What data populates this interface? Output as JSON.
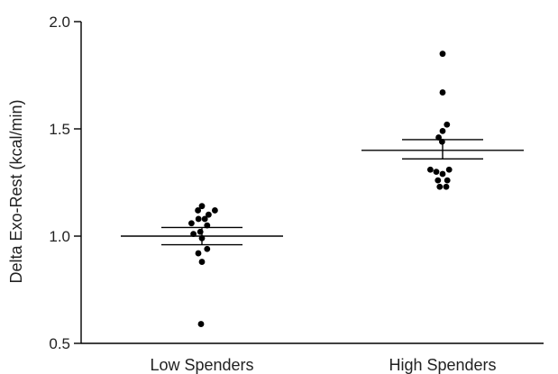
{
  "chart_data": {
    "type": "scatter",
    "title": "",
    "xlabel": "",
    "ylabel": "Delta Exo-Rest (kcal/min)",
    "ylim": [
      0.5,
      2.0
    ],
    "yticks": [
      "0.5",
      "1.0",
      "1.5",
      "2.0"
    ],
    "ytick_values": [
      0.5,
      1.0,
      1.5,
      2.0
    ],
    "grid": false,
    "legend": "none",
    "categories": [
      "Low Spenders",
      "High Spenders"
    ],
    "series": [
      {
        "category": "Low Spenders",
        "mean": 1.0,
        "sem_low": 0.96,
        "sem_high": 1.04,
        "points": [
          {
            "offset": 0.0,
            "y": 1.14
          },
          {
            "offset": -0.44,
            "y": 1.12
          },
          {
            "offset": 1.44,
            "y": 1.12
          },
          {
            "offset": 0.74,
            "y": 1.1
          },
          {
            "offset": -1.16,
            "y": 1.06
          },
          {
            "offset": 0.32,
            "y": 1.08
          },
          {
            "offset": -0.38,
            "y": 1.08
          },
          {
            "offset": 0.58,
            "y": 1.05
          },
          {
            "offset": -0.18,
            "y": 1.02
          },
          {
            "offset": -0.94,
            "y": 1.01
          },
          {
            "offset": 0.0,
            "y": 0.99
          },
          {
            "offset": 0.58,
            "y": 0.94
          },
          {
            "offset": -0.4,
            "y": 0.92
          },
          {
            "offset": 0.0,
            "y": 0.88
          },
          {
            "offset": -0.1,
            "y": 0.59
          }
        ]
      },
      {
        "category": "High Spenders",
        "mean": 1.4,
        "sem_low": 1.36,
        "sem_high": 1.45,
        "points": [
          {
            "offset": 0.0,
            "y": 1.85
          },
          {
            "offset": 0.0,
            "y": 1.67
          },
          {
            "offset": 0.48,
            "y": 1.52
          },
          {
            "offset": 0.0,
            "y": 1.49
          },
          {
            "offset": -0.44,
            "y": 1.46
          },
          {
            "offset": -0.06,
            "y": 1.44
          },
          {
            "offset": -1.36,
            "y": 1.31
          },
          {
            "offset": -0.7,
            "y": 1.3
          },
          {
            "offset": 0.72,
            "y": 1.31
          },
          {
            "offset": 0.0,
            "y": 1.29
          },
          {
            "offset": -0.52,
            "y": 1.26
          },
          {
            "offset": 0.52,
            "y": 1.26
          },
          {
            "offset": -0.32,
            "y": 1.23
          },
          {
            "offset": 0.4,
            "y": 1.23
          }
        ]
      }
    ]
  }
}
